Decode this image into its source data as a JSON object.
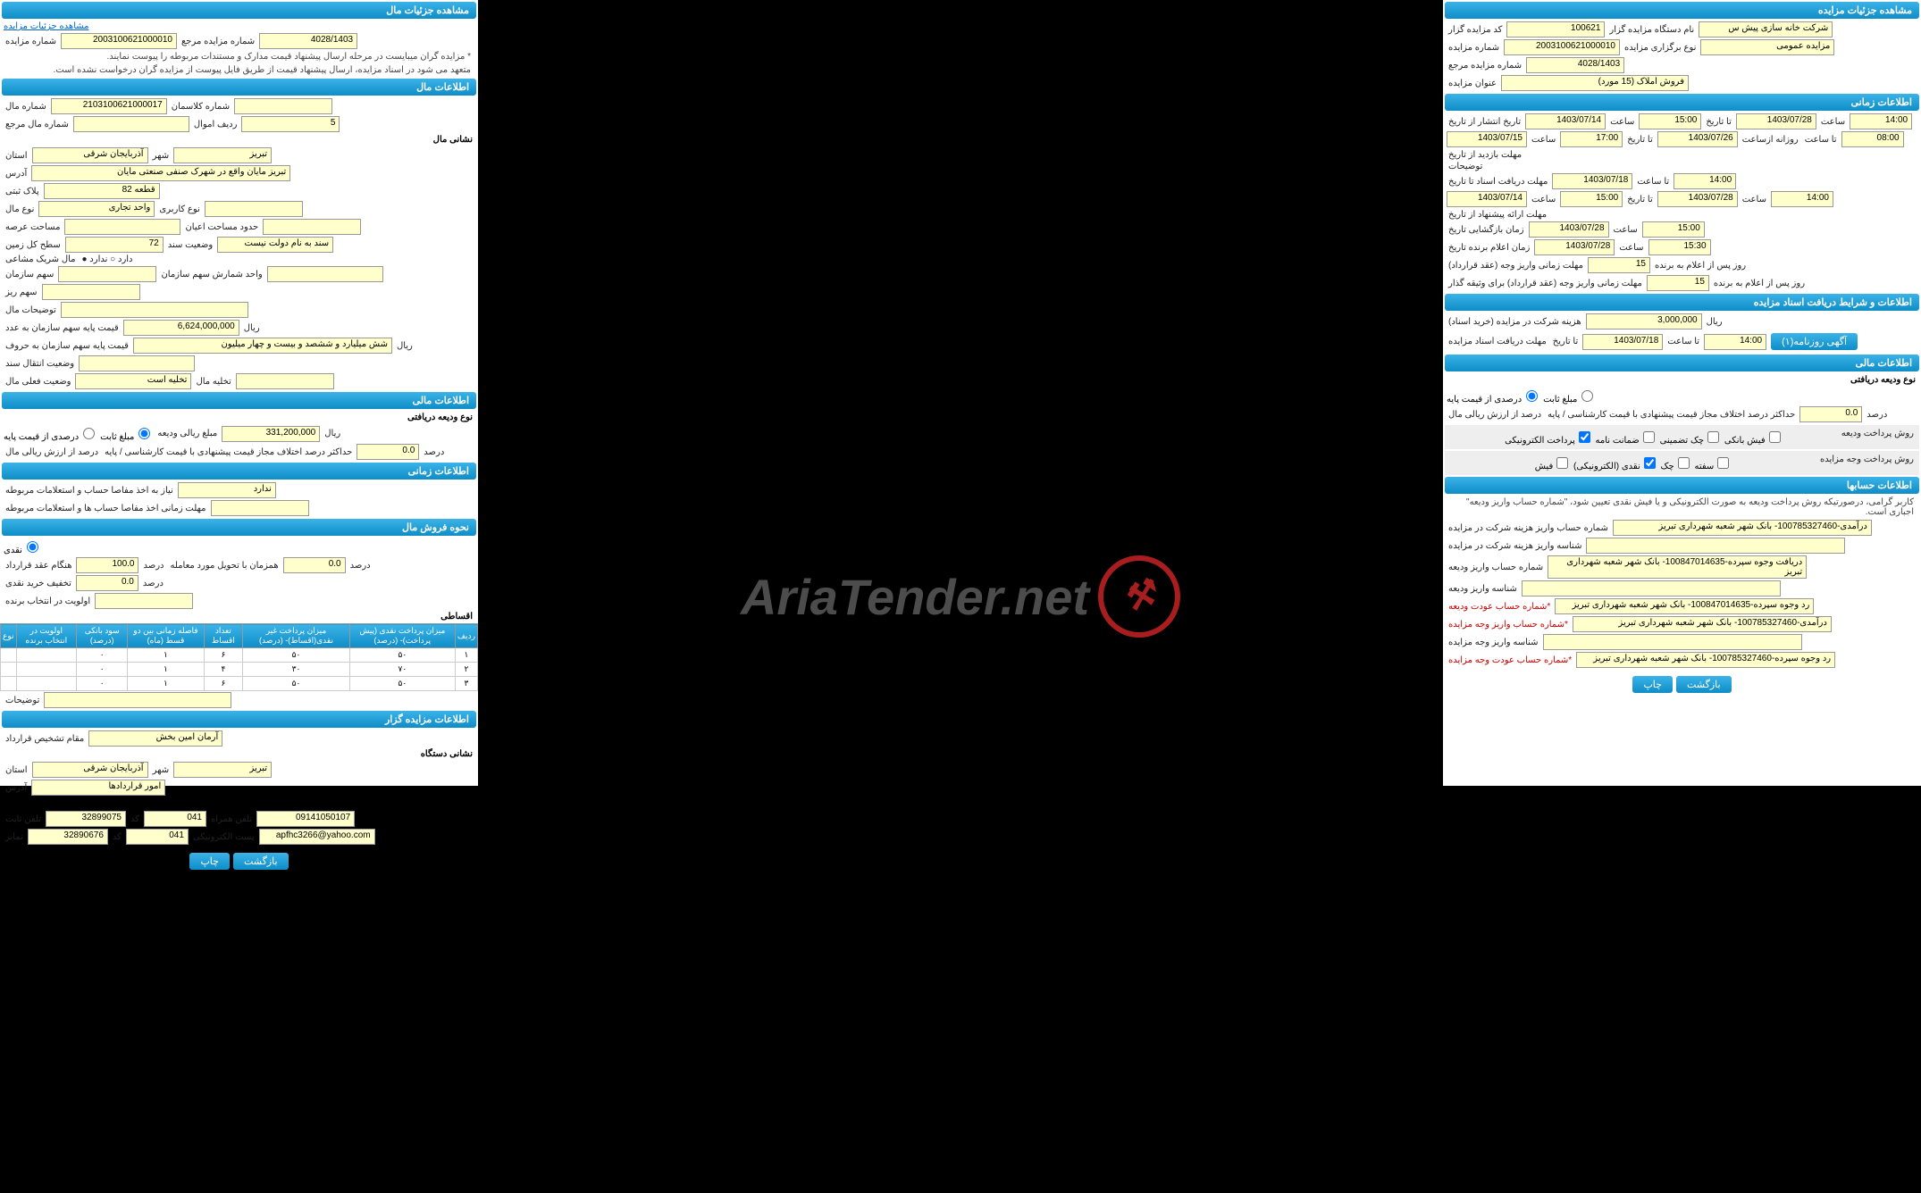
{
  "watermark": "AriaTender.net",
  "right_panel": {
    "s1": {
      "title": "مشاهده جزئیات مزایده",
      "rows": [
        {
          "l": "کد مزایده گزار",
          "v": "100621",
          "l2": "نام دستگاه مزایده گزار",
          "v2": "شرکت خانه سازی پیش س"
        },
        {
          "l": "شماره مزایده",
          "v": "2003100621000010",
          "l2": "نوع برگزاری مزایده",
          "v2": "مزایده عمومی"
        },
        {
          "l": "شماره مزایده مرجع",
          "v": "4028/1403"
        },
        {
          "l": "عنوان مزایده",
          "v": "فروش املاک (15 مورد)"
        }
      ]
    },
    "s2": {
      "title": "اطلاعات زمانی",
      "rows": [
        {
          "t": "تاریخ انتشار  از تاریخ",
          "d1": "1403/07/14",
          "h1": "15:00",
          "d2": "1403/07/28",
          "h2": "14:00"
        },
        {
          "t": "مهلت بازدید  از تاریخ",
          "d1": "1403/07/15",
          "h1": "17:00",
          "d2": "1403/07/26",
          "h2": "08:00",
          "extra": "روزانه ازساعت"
        },
        {
          "t": "توضیحات"
        },
        {
          "t": "مهلت دریافت اسناد  تا تاریخ",
          "d1": "1403/07/18",
          "h1": "14:00"
        },
        {
          "t": "مهلت ارائه پیشنهاد  از تاریخ",
          "d1": "1403/07/14",
          "h1": "15:00",
          "d2": "1403/07/28",
          "h2": "14:00"
        },
        {
          "t": "زمان بازگشایی  تاریخ",
          "d1": "1403/07/28",
          "h1": "15:00"
        },
        {
          "t": "زمان اعلام برنده  تاریخ",
          "d1": "1403/07/28",
          "h1": "15:30"
        }
      ],
      "foot1": {
        "l": "مهلت زمانی واریز وجه (عقد قرارداد)",
        "v": "15",
        "u": "روز پس از اعلام به برنده"
      },
      "foot2": {
        "l": "مهلت زمانی واریز وجه (عقد قرارداد) برای وثیقه گذار",
        "v": "15",
        "u": "روز پس از اعلام به برنده"
      }
    },
    "s3": {
      "title": "اطلاعات و شرایط دریافت اسناد مزایده",
      "r1": {
        "l": "هزینه شرکت در مزایده (خرید اسناد)",
        "v": "3,000,000",
        "u": "ریال"
      },
      "r2": {
        "l": "مهلت دریافت اسناد مزایده",
        "d": "1403/07/18",
        "h": "14:00"
      },
      "btn": "آگهی روزنامه(۱)"
    },
    "s4": {
      "title": "اطلاعات مالی",
      "sub": "نوع ودیعه دریافتی",
      "r1": {
        "l": "درصدی از قیمت پایه",
        "opt": "مبلغ ثابت"
      },
      "r2": {
        "l": "درصد از ارزش ریالی مال",
        "l2": "حداکثر درصد اختلاف مجاز قیمت پیشنهادی با قیمت کارشناسی / پایه",
        "v": "0.0",
        "u": "درصد"
      },
      "r3": {
        "l": "روش پرداخت ودیعه",
        "opts": [
          "پرداخت الکترونیکی",
          "ضمانت نامه",
          "چک تضمینی",
          "فیش بانکی"
        ]
      },
      "r4": {
        "l": "روش پرداخت وجه مزایده",
        "opts": [
          "فیش",
          "نقدی (الکترونیکی)",
          "چک",
          "سفته"
        ]
      }
    },
    "s5": {
      "title": "اطلاعات حسابها",
      "warn": "کاربر گرامی، درصورتیکه روش پرداخت ودیعه به صورت الکترونیکی و یا فیش نقدی تعیین شود، \"شماره حساب واریز ودیعه\" اجباری است.",
      "rows": [
        {
          "l": "شماره حساب واریز هزینه شرکت در مزایده",
          "v": "درآمدی-100785327460- بانک شهر شعبه شهرداری تبریز"
        },
        {
          "l": "شناسه واریز هزینه شرکت در مزایده",
          "v": ""
        },
        {
          "l": "شماره حساب واریز ودیعه",
          "v": "دریافت وجوه سپرده-100847014635- بانک شهر شعبه شهرداری تبریز"
        },
        {
          "l": "شناسه واریز ودیعه",
          "v": ""
        },
        {
          "l": "*شماره حساب عودت ودیعه",
          "v": "رد وجوه سپرده-100847014635- بانک شهر شعبه شهرداری تبریز"
        },
        {
          "l": "*شماره حساب واریز وجه مزایده",
          "v": "درآمدی-100785327460- بانک شهر شعبه شهرداری تبریز"
        },
        {
          "l": "شناسه واریز وجه مزایده",
          "v": ""
        },
        {
          "l": "*شماره حساب عودت وجه مزایده",
          "v": "رد وجوه سپرده-100785327460- بانک شهر شعبه شهرداری تبریز"
        }
      ],
      "btns": [
        "چاپ",
        "بازگشت"
      ]
    }
  },
  "left_panel": {
    "s1": {
      "title": "مشاهده جزئیات مال",
      "link": "مشاهده جزئیات مزایده",
      "r1": {
        "l": "شماره مزایده",
        "v": "2003100621000010",
        "l2": "شماره مزایده مرجع",
        "v2": "4028/1403"
      },
      "note1": "* مزایده گران میبایست در مرحله ارسال پیشنهاد قیمت مدارک و مستندات مربوطه را پیوست نمایند.",
      "note2": "متعهد می شود در اسناد مزایده، ارسال پیشنهاد قیمت از طریق فایل پیوست از مزایده گران درخواست نشده است."
    },
    "s2": {
      "title": "اطلاعات مال",
      "rows": [
        {
          "l": "شماره مال",
          "v": "2103100621000017",
          "l2": "شماره کلاسمان",
          "v2": ""
        },
        {
          "l": "شماره مال مرجع",
          "v": "",
          "l2": "ردیف اموال",
          "v2": "5"
        }
      ],
      "sub": "نشانی مال",
      "addr": [
        {
          "l": "استان",
          "v": "آذربایجان شرقی",
          "l2": "شهر",
          "v2": "تبریز"
        },
        {
          "l": "آدرس",
          "v": "تبریز مایان واقع در شهرک صنفی صنعتی مایان"
        },
        {
          "l": "پلاک ثبتی",
          "v": "قطعه 82"
        },
        {
          "l": "نوع مال",
          "v": "واحد تجاری",
          "l2": "نوع کاربری",
          "v2": ""
        },
        {
          "l": "مساحت عرصه",
          "v": "",
          "l2": "حدود مساحت اعیان",
          "v2": ""
        },
        {
          "l": "سطح کل زمین",
          "v": "72",
          "l2": "وضعیت سند",
          "v2": "سند به نام دولت نیست"
        },
        {
          "l": "مال شریک مشاعی",
          "v": "دارد ○  ندارد ●"
        },
        {
          "l": "سهم سازمان",
          "v": "",
          "l2": "واحد شمارش سهم سازمان",
          "v2": ""
        },
        {
          "l": "سهم ریز",
          "v": ""
        },
        {
          "l": "توضیحات مال",
          "v": ""
        },
        {
          "l": "قیمت پایه سهم سازمان به عدد",
          "v": "6,624,000,000",
          "u": "ریال"
        },
        {
          "l": "قیمت پایه سهم سازمان به حروف",
          "v": "شش میلیارد و ششصد و بیست و چهار میلیون",
          "u": "ریال"
        },
        {
          "l": "وضعیت انتقال سند",
          "v": ""
        },
        {
          "l": "وضعیت فعلی مال",
          "v": "تخلیه است",
          "l2": "تخلیه مال",
          "v2": ""
        }
      ]
    },
    "s3": {
      "title": "اطلاعات مالی",
      "sub": "نوع ودیعه دریافتی",
      "r1": {
        "l": "درصدی از قیمت پایه",
        "opt": "مبلغ ثابت",
        "l2": "مبلغ ریالی ودیعه",
        "v": "331,200,000",
        "u": "ریال"
      },
      "r2": {
        "l": "درصد از ارزش ریالی مال",
        "l2": "حداکثر درصد اختلاف مجاز قیمت پیشنهادی با قیمت کارشناسی / پایه",
        "v": "0.0",
        "u": "درصد"
      }
    },
    "s4": {
      "title": "اطلاعات زمانی",
      "r1": {
        "l": "نیاز به اخذ مفاصا حساب و استعلامات مربوطه",
        "v": "ندارد"
      },
      "r2": {
        "l": "مهلت زمانی اخذ مفاصا حساب ها و استعلامات مربوطه",
        "v": ""
      }
    },
    "s5": {
      "title": "نحوه فروش مال",
      "opt": "نقدی",
      "r1": {
        "l": "هنگام عقد قرارداد",
        "v": "100.0",
        "u": "درصد",
        "l2": "همزمان با تحویل مورد معامله",
        "v2": "0.0",
        "u2": "درصد"
      },
      "r2": {
        "l": "تخفیف خرید نقدی",
        "v": "0.0",
        "u": "درصد"
      },
      "sub": "اقساطی",
      "r3": {
        "l": "اولویت در انتخاب برنده",
        "v": ""
      },
      "table": {
        "headers": [
          "ردیف",
          "میزان پرداخت نقدی (پیش پرداخت)- (درصد)",
          "میزان پرداخت غیر نقدی(اقساط)- (درصد)",
          "تعداد اقساط",
          "فاصله زمانی بین دو قسط (ماه)",
          "سود بانکی (درصد)",
          "اولویت در انتخاب برنده",
          "نوع"
        ],
        "rows": [
          [
            "۱",
            "۵۰",
            "۵۰",
            "۶",
            "۱",
            "۰",
            "",
            ""
          ],
          [
            "۲",
            "۷۰",
            "۳۰",
            "۴",
            "۱",
            "۰",
            "",
            ""
          ],
          [
            "۳",
            "۵۰",
            "۵۰",
            "۶",
            "۱",
            "۰",
            "",
            ""
          ]
        ]
      },
      "r4": {
        "l": "توضیحات",
        "v": ""
      }
    },
    "s6": {
      "title": "اطلاعات مزایده گزار",
      "r1": {
        "l": "مقام تشخیص قرارداد",
        "v": "آرمان امین بخش"
      },
      "sub1": "نشانی دستگاه",
      "r2": {
        "l": "استان",
        "v": "آذربایجان شرقی",
        "l2": "شهر",
        "v2": "تبریز"
      },
      "r3": {
        "l": "آدرس",
        "v": "امور قراردادها"
      },
      "sub2": "اطلاعات تماس",
      "r4": {
        "l": "تلفن ثابت",
        "v": "32899075",
        "l2": "کد",
        "v2": "041",
        "l3": "تلفن همراه",
        "v3": "09141050107"
      },
      "r5": {
        "l": "نمابر",
        "v": "32890676",
        "l2": "کد",
        "v2": "041",
        "l3": "پست الکترونیکی",
        "v3": "apfhc3266@yahoo.com"
      },
      "btns": [
        "چاپ",
        "بازگشت"
      ]
    }
  }
}
